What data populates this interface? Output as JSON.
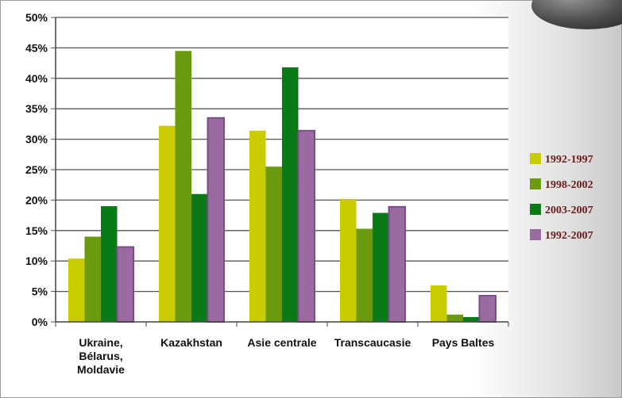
{
  "chart_data": {
    "type": "bar",
    "categories": [
      [
        "Ukraine,",
        "Bélarus,",
        "Moldavie"
      ],
      [
        "Kazakhstan"
      ],
      [
        "Asie centrale"
      ],
      [
        "Transcaucasie"
      ],
      [
        "Pays Baltes"
      ]
    ],
    "series": [
      {
        "name": "1992-1997",
        "color": "#c8cc00",
        "values": [
          10.4,
          32.2,
          31.4,
          20.2,
          6.0
        ]
      },
      {
        "name": "1998-2002",
        "color": "#6b9a10",
        "values": [
          14.0,
          44.5,
          25.5,
          15.3,
          1.2
        ]
      },
      {
        "name": "2003-2007",
        "color": "#0a7a18",
        "values": [
          19.0,
          21.0,
          41.8,
          17.9,
          0.8
        ]
      },
      {
        "name": "1992-2007",
        "color": "#9a6aa0",
        "values": [
          12.3,
          33.5,
          31.4,
          18.9,
          4.3
        ]
      }
    ],
    "ylim": [
      0,
      50
    ],
    "yticks": [
      "0%",
      "5%",
      "10%",
      "15%",
      "20%",
      "25%",
      "30%",
      "35%",
      "40%",
      "45%",
      "50%"
    ],
    "grid": true,
    "legend_position": "right"
  }
}
